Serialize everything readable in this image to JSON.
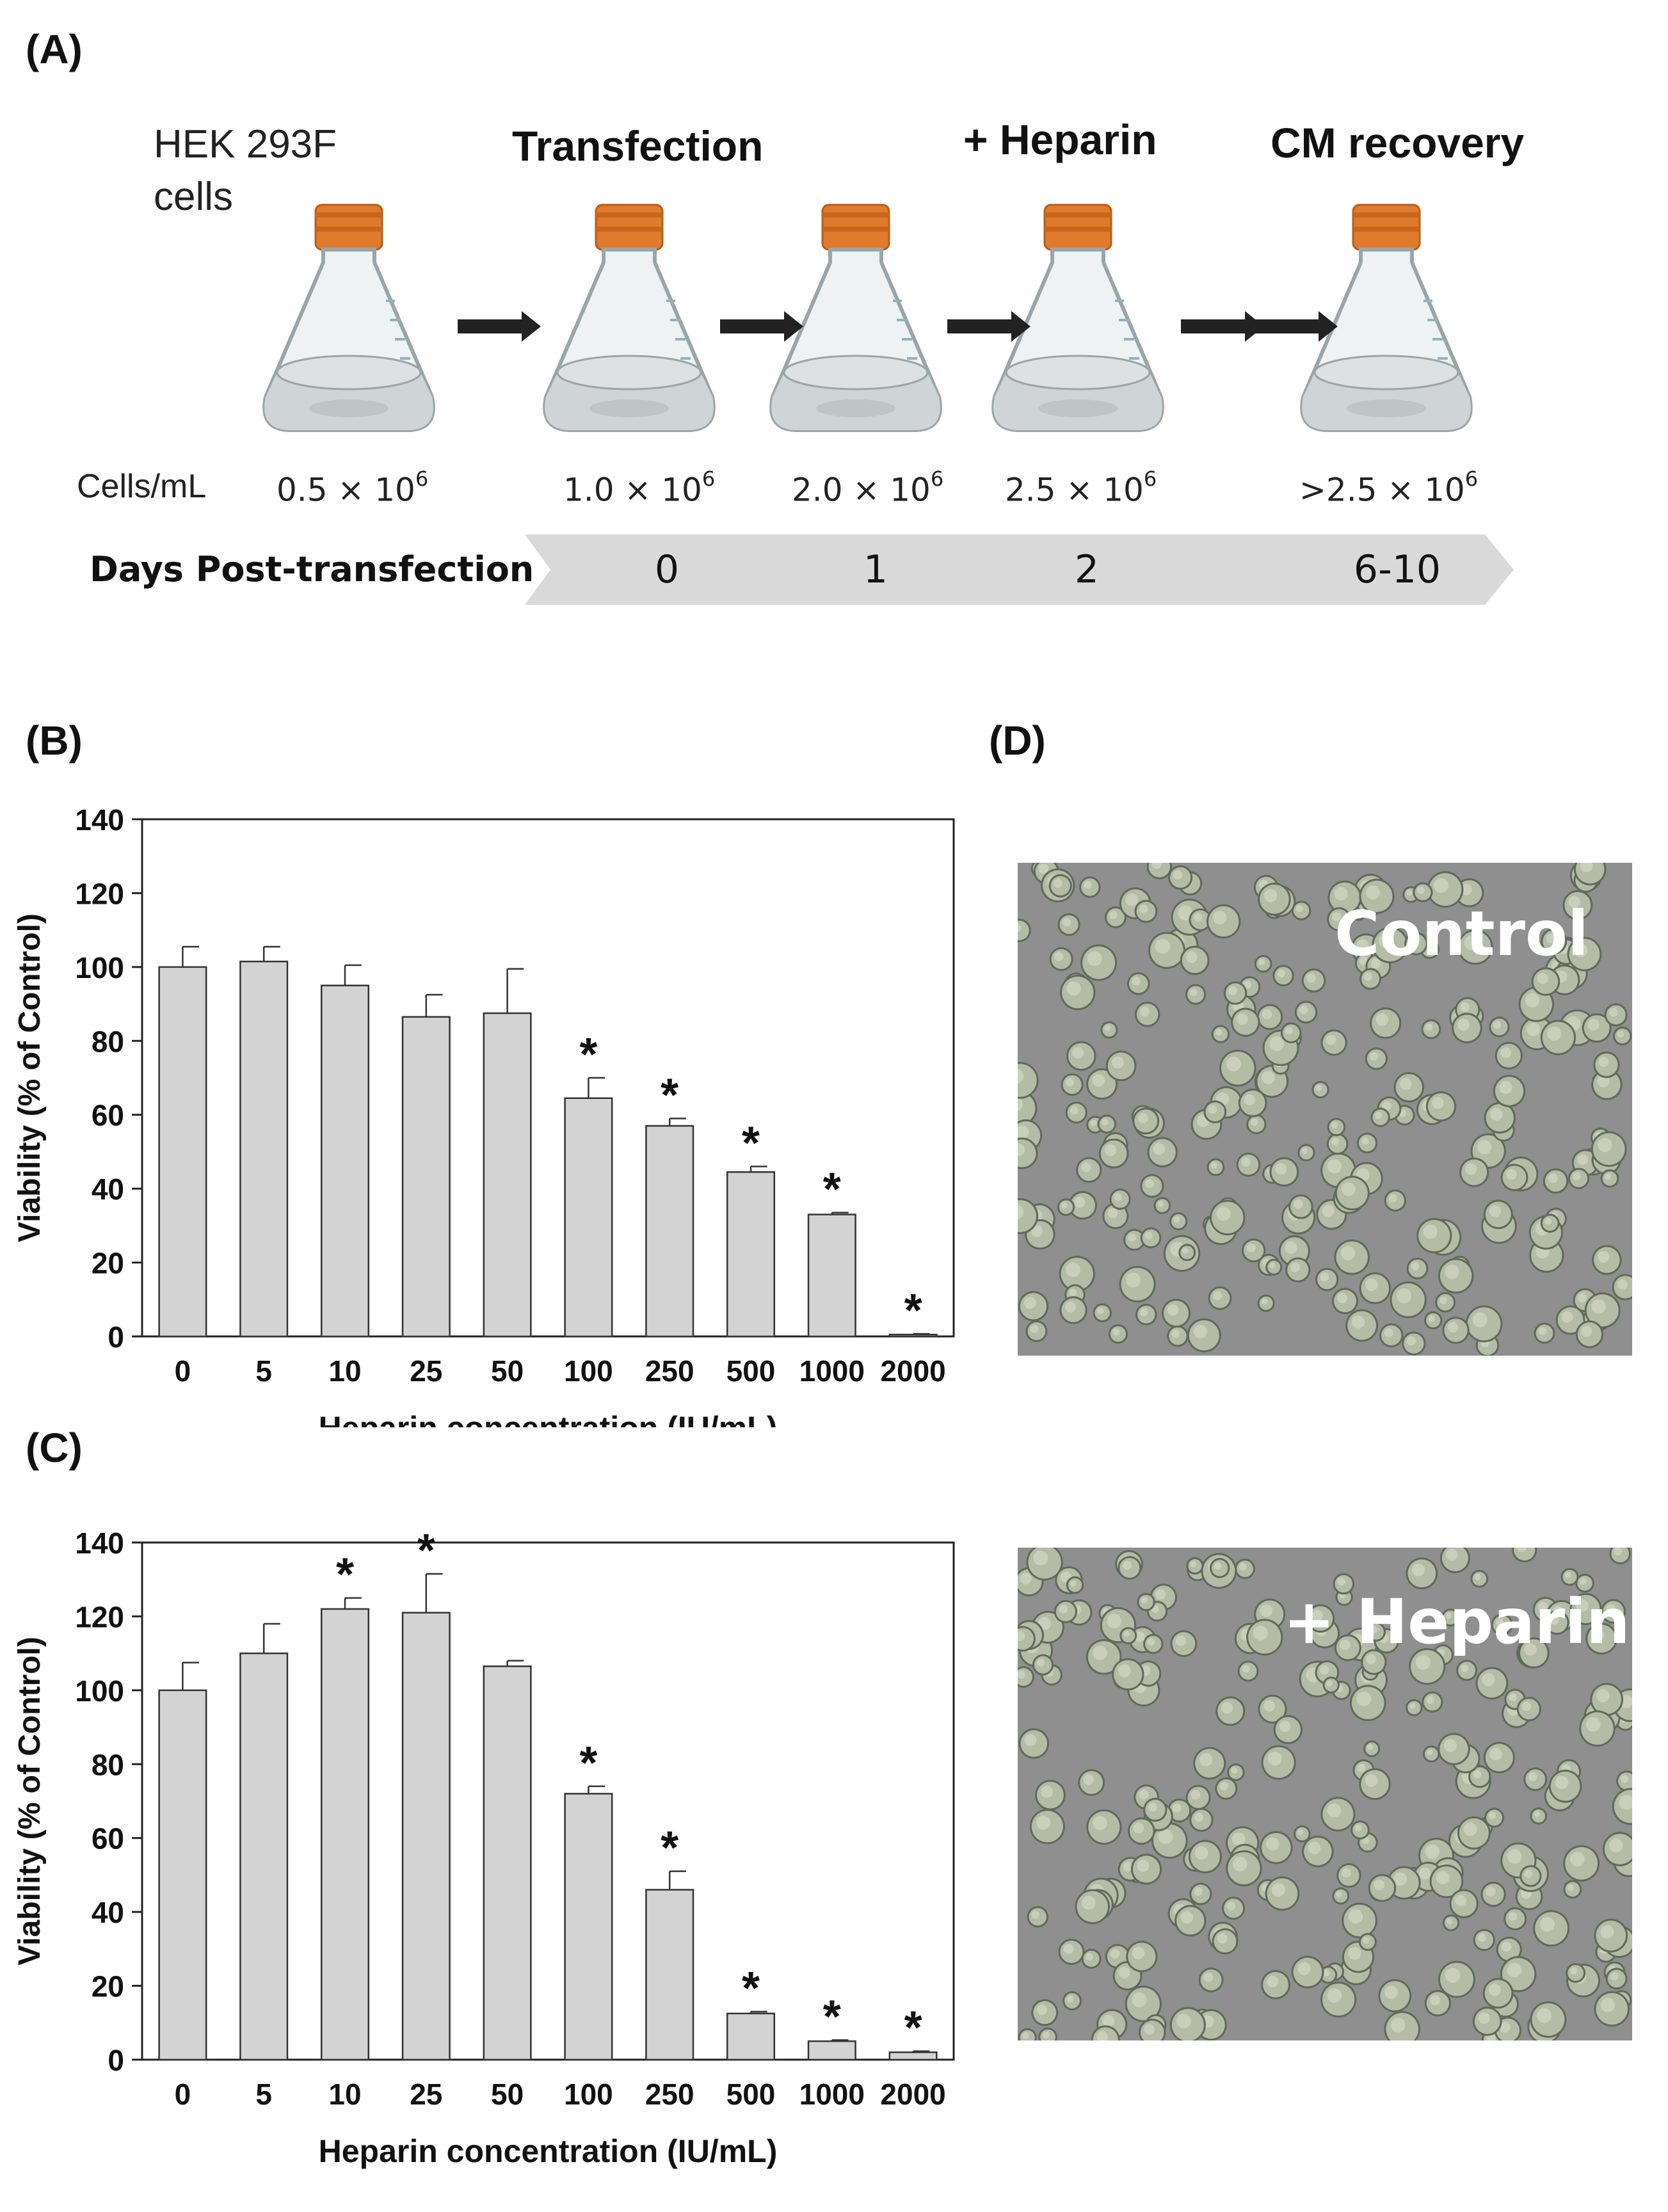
{
  "panels": {
    "a": "(A)",
    "b": "(B)",
    "c": "(C)",
    "d": "(D)"
  },
  "workflow": {
    "cell_line": "HEK 293F",
    "cell_line_2": "cells",
    "steps": [
      "Transfection",
      "+ Heparin",
      "CM recovery"
    ],
    "density_label": "Cells/mL",
    "densities": [
      {
        "prefix": "0.5 × 10",
        "exp": "6"
      },
      {
        "prefix": "1.0 × 10",
        "exp": "6"
      },
      {
        "prefix": "2.0 × 10",
        "exp": "6"
      },
      {
        "prefix": "2.5 × 10",
        "exp": "6"
      },
      {
        "prefix": ">2.5 × 10",
        "exp": "6"
      }
    ],
    "timeline_label": "Days Post-transfection",
    "days": [
      "0",
      "1",
      "2",
      "6-10"
    ],
    "colors": {
      "cap": "#e07a2c",
      "flask": "#e9eef0",
      "arrow": "#222222",
      "timeline": "#d9d9d9"
    }
  },
  "chart_data": [
    {
      "type": "bar",
      "panel": "(B)",
      "categories": [
        "0",
        "5",
        "10",
        "25",
        "50",
        "100",
        "250",
        "500",
        "1000",
        "2000"
      ],
      "values": [
        100,
        101.5,
        95,
        86.5,
        87.5,
        64.5,
        57,
        44.5,
        33,
        0.5
      ],
      "errors": [
        5.5,
        4,
        5.5,
        6,
        12,
        5.5,
        2,
        1.5,
        0.5,
        0.2
      ],
      "significant": [
        false,
        false,
        false,
        false,
        false,
        true,
        true,
        true,
        true,
        true
      ],
      "marker": "*",
      "xlabel": "Heparin concentration (IU/mL)",
      "ylabel": "Viability (% of Control)",
      "ylim": [
        0,
        140
      ],
      "yticks": [
        0,
        20,
        40,
        60,
        80,
        100,
        120,
        140
      ],
      "bar_color": "#d3d3d3",
      "grid": false
    },
    {
      "type": "bar",
      "panel": "(C)",
      "categories": [
        "0",
        "5",
        "10",
        "25",
        "50",
        "100",
        "250",
        "500",
        "1000",
        "2000"
      ],
      "values": [
        100,
        110,
        122,
        121,
        106.5,
        72,
        46,
        12.5,
        5,
        2
      ],
      "errors": [
        7.5,
        8,
        3,
        10.5,
        1.5,
        2,
        5,
        0.5,
        0.3,
        0.3
      ],
      "significant": [
        false,
        false,
        true,
        true,
        false,
        true,
        true,
        true,
        true,
        true
      ],
      "marker": "*",
      "xlabel": "Heparin concentration (IU/mL)",
      "ylabel": "Viability (% of Control)",
      "ylim": [
        0,
        140
      ],
      "yticks": [
        0,
        20,
        40,
        60,
        80,
        100,
        120,
        140
      ],
      "bar_color": "#d3d3d3",
      "grid": false
    }
  ],
  "micrographs": [
    {
      "label": "Control"
    },
    {
      "label": "+ Heparin"
    }
  ]
}
